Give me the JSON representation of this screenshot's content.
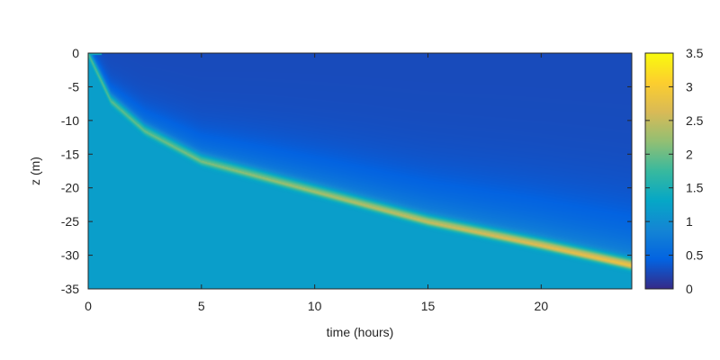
{
  "chart_data": {
    "type": "heatmap",
    "title": "",
    "xlabel": "time (hours)",
    "ylabel": "z (m)",
    "xlim": [
      0,
      24
    ],
    "ylim": [
      -35,
      0
    ],
    "xticks": [
      0,
      5,
      10,
      15,
      20
    ],
    "yticks": [
      0,
      -5,
      -10,
      -15,
      -20,
      -25,
      -30,
      -35
    ],
    "colorbar": {
      "range": [
        0,
        3.5
      ],
      "ticks": [
        0,
        0.5,
        1,
        1.5,
        2,
        2.5,
        3,
        3.5
      ],
      "colormap": [
        "#352a87",
        "#0363e1",
        "#1485d4",
        "#06a7c6",
        "#38b99e",
        "#92bf73",
        "#d9ba56",
        "#fcce2e",
        "#f9fb0e"
      ]
    },
    "front": {
      "description_values": "depth of peak vs time",
      "points": [
        {
          "t": 0,
          "z": 0
        },
        {
          "t": 1,
          "z": -7
        },
        {
          "t": 2.5,
          "z": -11.5
        },
        {
          "t": 5,
          "z": -16
        },
        {
          "t": 10,
          "z": -20.5
        },
        {
          "t": 15,
          "z": -25
        },
        {
          "t": 20,
          "z": -28.5
        },
        {
          "t": 24,
          "z": -31.5
        }
      ],
      "peak_value_start": 1.9,
      "peak_value_end": 2.9
    },
    "below_front_value": 1.2,
    "surface_value": 0.25
  }
}
